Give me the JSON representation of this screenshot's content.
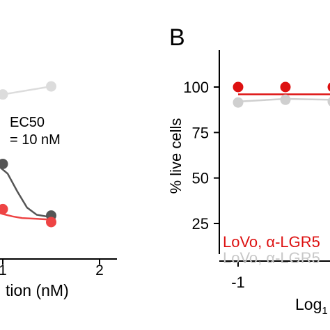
{
  "chart_data": [
    {
      "type": "scatter",
      "panel_label": "",
      "title": "",
      "xlabel": "tion (nM)",
      "ylabel": "",
      "x_ticks": [
        "1",
        "2"
      ],
      "x_tick_values": [
        1,
        2
      ],
      "xlim": [
        -0.3,
        2.2
      ],
      "ylim": [
        0,
        120
      ],
      "annotation": [
        "EC50",
        "= 10 nM"
      ],
      "legend": "none",
      "grid": false,
      "series": [
        {
          "color": "#dcdcdc",
          "points": [
            [
              1.0,
              101
            ],
            [
              1.5,
              106
            ]
          ],
          "fit": [
            [
              1.0,
              101
            ],
            [
              1.5,
              106
            ]
          ]
        },
        {
          "color": "#555555",
          "points": [
            [
              1.0,
              58
            ],
            [
              1.5,
              26
            ]
          ],
          "fit": [
            [
              0.8,
              58
            ],
            [
              0.95,
              57
            ],
            [
              1.05,
              52
            ],
            [
              1.15,
              41
            ],
            [
              1.25,
              31
            ],
            [
              1.35,
              26.5
            ],
            [
              1.5,
              25
            ]
          ]
        },
        {
          "color": "#ee4444",
          "points": [
            [
              1.0,
              30
            ],
            [
              1.5,
              22
            ]
          ],
          "fit": [
            [
              0.9,
              29
            ],
            [
              1.0,
              27
            ],
            [
              1.1,
              25.5
            ],
            [
              1.2,
              24.5
            ],
            [
              1.35,
              24
            ],
            [
              1.5,
              23.5
            ]
          ]
        }
      ]
    },
    {
      "type": "scatter",
      "panel_label": "B",
      "title": "",
      "xlabel": "Log",
      "xlabel_sub": "1",
      "ylabel": "% live cells",
      "x_ticks": [
        "-1"
      ],
      "x_tick_values": [
        -1
      ],
      "xlim": [
        -1.2,
        1.0
      ],
      "y_ticks": [
        "25",
        "50",
        "75",
        "100"
      ],
      "y_tick_values": [
        25,
        50,
        75,
        100
      ],
      "ylim": [
        15,
        120
      ],
      "legend_entries": [
        {
          "label": "LoVo, α-LGR5",
          "color": "#dd1111"
        },
        {
          "label": "LoVo, α-LGR5",
          "color": "#c8c8c8"
        }
      ],
      "legend": "bottom-left",
      "grid": false,
      "series": [
        {
          "color": "#dd1111",
          "points": [
            [
              -1.0,
              100
            ],
            [
              -0.5,
              100
            ],
            [
              0.0,
              100
            ]
          ],
          "fit": [
            [
              -1.0,
              96
            ],
            [
              0.0,
              96
            ]
          ]
        },
        {
          "color": "#cfcfcf",
          "points": [
            [
              -1.0,
              91.5
            ],
            [
              -0.5,
              93
            ],
            [
              0.0,
              92
            ]
          ],
          "fit": [
            [
              -1.0,
              92
            ],
            [
              -0.5,
              93.5
            ],
            [
              0.0,
              93
            ]
          ]
        }
      ]
    }
  ]
}
